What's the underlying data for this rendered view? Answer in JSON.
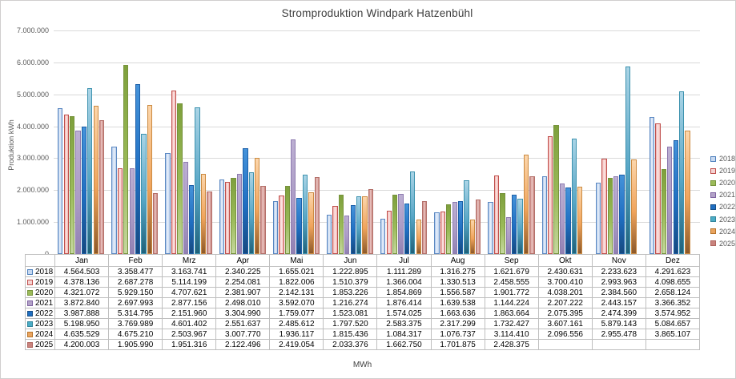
{
  "chart": {
    "title": "Stromproduktion Windpark Hatzenbühl",
    "y_axis_title": "Produktion kWh",
    "x_axis_title": "MWh"
  },
  "theme": {
    "grid_color": "#D9D9D9",
    "axis_color": "#BFBFBF",
    "tick_text_color": "#595959",
    "title_color": "#3d3d3d",
    "table_border_color": "#BFBFBF",
    "background": "#ffffff"
  },
  "chart_data": {
    "type": "bar",
    "title": "Stromproduktion Windpark Hatzenbühl",
    "xlabel": "MWh",
    "ylabel": "Produktion kWh",
    "ylim": [
      0,
      7000000
    ],
    "ytick_step": 1000000,
    "grid": true,
    "legend_position": "right",
    "data_table_shown": true,
    "categories": [
      "Jan",
      "Feb",
      "Mrz",
      "Apr",
      "Mai",
      "Jun",
      "Jul",
      "Aug",
      "Sep",
      "Okt",
      "Nov",
      "Dez"
    ],
    "series": [
      {
        "name": "2018",
        "key_fill": "#C7D9F1",
        "key_border": "#4F81BD",
        "bar_dir": "h",
        "bar_stops": [
          "#A9C4E8",
          "#EAF1FB",
          "#BACFEC"
        ],
        "bar_border": "#5B88C2",
        "values": [
          4564503,
          3358477,
          3163741,
          2340225,
          1655021,
          1222895,
          1111289,
          1316275,
          1621679,
          2430631,
          2233623,
          4291623
        ]
      },
      {
        "name": "2019",
        "key_fill": "#F4D3D2",
        "key_border": "#C0504D",
        "bar_dir": "h",
        "bar_stops": [
          "#F0ACA8",
          "#FBE7E6",
          "#F2B4B0"
        ],
        "bar_border": "#C0504D",
        "values": [
          4378136,
          2687278,
          5114199,
          2254081,
          1822006,
          1510379,
          1366004,
          1330513,
          2458555,
          3700410,
          2993963,
          4098655
        ]
      },
      {
        "name": "2020",
        "key_fill": "#9BBB59",
        "key_border": "#77933C",
        "bar_dir": "v",
        "bar_stops": [
          "#7EA03C",
          "#9BBB59",
          "#C5D79E"
        ],
        "bar_border": "#77933C",
        "values": [
          4321072,
          5929150,
          4707621,
          2381907,
          2142131,
          1853226,
          1854869,
          1556587,
          1901772,
          4038201,
          2384560,
          2658124
        ]
      },
      {
        "name": "2021",
        "key_fill": "#B2A2C7",
        "key_border": "#8064A2",
        "bar_dir": "v",
        "bar_stops": [
          "#BCAFD2",
          "#AC9CC6",
          "#9181B3"
        ],
        "bar_border": "#8E7BB0",
        "values": [
          3872840,
          2697993,
          2877156,
          2498010,
          3592070,
          1216274,
          1876414,
          1639538,
          1144224,
          2207222,
          2443157,
          3366352
        ]
      },
      {
        "name": "2022",
        "key_fill": "#1F6EC1",
        "key_border": "#174F87",
        "bar_dir": "v",
        "bar_stops": [
          "#4593DA",
          "#1F6EC1",
          "#16497E"
        ],
        "bar_border": "#1C5FA8",
        "values": [
          3987888,
          5314795,
          2151960,
          3304990,
          1759077,
          1523081,
          1574025,
          1663636,
          1863664,
          2075395,
          2474399,
          3574952
        ]
      },
      {
        "name": "2023",
        "key_fill": "#4BACC6",
        "key_border": "#31859B",
        "bar_dir": "v",
        "bar_stops": [
          "#AAD4E6",
          "#57A6C6",
          "#20617A"
        ],
        "bar_border": "#3E93AF",
        "values": [
          5198950,
          3769989,
          4601402,
          2551637,
          2485612,
          1797520,
          2583375,
          2317299,
          1732427,
          3607161,
          5879143,
          5084657
        ]
      },
      {
        "name": "2024",
        "key_fill": "#E9A45F",
        "key_border": "#B8742A",
        "bar_dir": "v",
        "bar_stops": [
          "#FCD6AB",
          "#F0A45C",
          "#8C592B"
        ],
        "bar_border": "#CB8A41",
        "values": [
          4635529,
          4675210,
          2503967,
          3007770,
          1936117,
          1815436,
          1084317,
          1076737,
          3114410,
          2096556,
          2955478,
          3865107
        ]
      },
      {
        "name": "2025",
        "key_fill": "#C9837D",
        "key_border": "#AF6660",
        "bar_dir": "h",
        "bar_stops": [
          "#C5817B",
          "#EDC9C6",
          "#C5817B"
        ],
        "bar_border": "#B4706A",
        "values": [
          4200003,
          1905990,
          1951316,
          2122496,
          2419054,
          2033376,
          1662750,
          1701875,
          2428375,
          null,
          null,
          null
        ]
      }
    ]
  }
}
